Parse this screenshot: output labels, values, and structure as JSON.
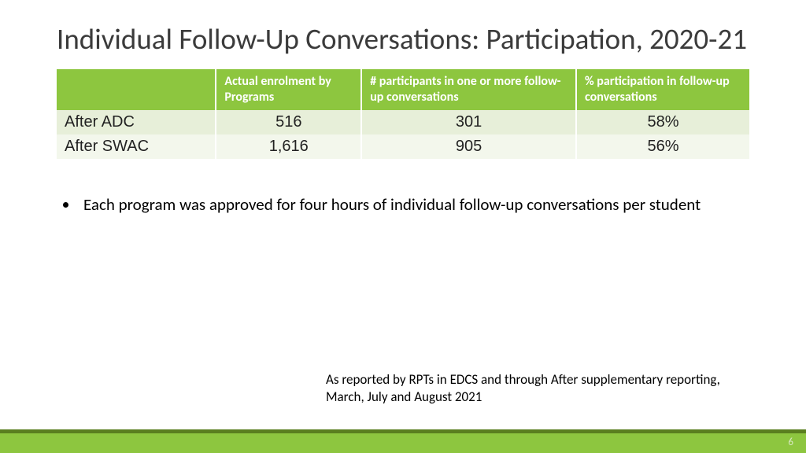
{
  "title": "Individual Follow-Up Conversations: Participation, 2020-21",
  "table": {
    "type": "table",
    "header_bg": "#8dc63f",
    "header_fg": "#ffffff",
    "row_bg": [
      "#e7efd9",
      "#f3f7ec"
    ],
    "border_color": "#ffffff",
    "col_widths_pct": [
      23,
      21,
      31,
      25
    ],
    "header_fontsize": 16,
    "cell_fontsize": 20,
    "columns": [
      "",
      "Actual enrolment by Programs",
      "# participants in one or more follow-up conversations",
      "% participation in follow-up conversations"
    ],
    "rows": [
      {
        "label": "After ADC",
        "enrolment": "516",
        "participants": "301",
        "pct": "58%"
      },
      {
        "label": "After SWAC",
        "enrolment": "1,616",
        "participants": "905",
        "pct": "56%"
      }
    ]
  },
  "bullets": [
    "Each program was approved for four hours of individual follow-up conversations per student"
  ],
  "footnote": "As reported by RPTs in EDCS and through After supplementary reporting, March, July and August 2021",
  "footer": {
    "bar_color": "#8dc63f",
    "stripe_color": "#5a7f1f",
    "page_number": "6",
    "page_number_color": "#d9e8c2"
  }
}
